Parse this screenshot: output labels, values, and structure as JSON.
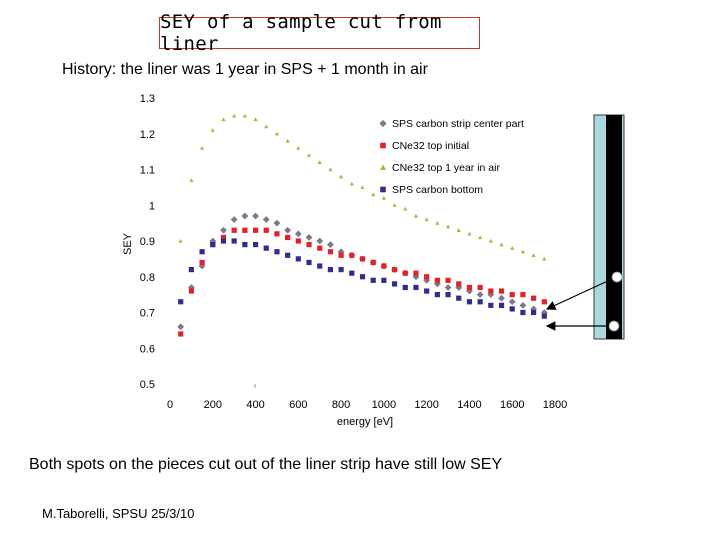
{
  "slide": {
    "title": "SEY of a sample cut from liner",
    "subtitle": "History: the liner was 1 year in SPS +  1 month in air",
    "conclusion": "Both spots on the pieces cut out of the liner strip have still low SEY",
    "footer": "M.Taborelli, SPSU 25/3/10"
  },
  "chart_data": {
    "type": "scatter",
    "title": "",
    "xlabel": "energy [eV]",
    "ylabel": "SEY",
    "xlim": [
      0,
      1800
    ],
    "ylim": [
      0.5,
      1.3
    ],
    "x_ticks": [
      "0",
      "200",
      "400",
      "600",
      "800",
      "1000",
      "1200",
      "1400",
      "1600",
      "1800"
    ],
    "y_ticks": [
      "1.3",
      "1.2",
      "1.1",
      "1",
      "0.9",
      "0.8",
      "0.7",
      "0.6",
      "0.5"
    ],
    "legend_position": "top-right",
    "series": [
      {
        "name": "SPS carbon strip center part",
        "color": "#7a7a8c",
        "marker": "diamond",
        "x": [
          50,
          100,
          150,
          200,
          250,
          300,
          350,
          400,
          450,
          500,
          550,
          600,
          650,
          700,
          750,
          800,
          850,
          900,
          950,
          1000,
          1050,
          1100,
          1150,
          1200,
          1250,
          1300,
          1350,
          1400,
          1450,
          1500,
          1550,
          1600,
          1650,
          1700,
          1750
        ],
        "y": [
          0.66,
          0.77,
          0.83,
          0.9,
          0.93,
          0.96,
          0.97,
          0.97,
          0.96,
          0.95,
          0.93,
          0.92,
          0.91,
          0.9,
          0.89,
          0.87,
          0.86,
          0.85,
          0.84,
          0.83,
          0.82,
          0.81,
          0.8,
          0.79,
          0.78,
          0.77,
          0.77,
          0.76,
          0.75,
          0.75,
          0.74,
          0.73,
          0.72,
          0.71,
          0.7
        ]
      },
      {
        "name": "CNe32 top initial",
        "color": "#e0232a",
        "marker": "square",
        "x": [
          50,
          100,
          150,
          200,
          250,
          300,
          350,
          400,
          450,
          500,
          550,
          600,
          650,
          700,
          750,
          800,
          850,
          900,
          950,
          1000,
          1050,
          1100,
          1150,
          1200,
          1250,
          1300,
          1350,
          1400,
          1450,
          1500,
          1550,
          1600,
          1650,
          1700,
          1750
        ],
        "y": [
          0.64,
          0.76,
          0.84,
          0.89,
          0.91,
          0.93,
          0.93,
          0.93,
          0.93,
          0.92,
          0.91,
          0.9,
          0.89,
          0.88,
          0.87,
          0.86,
          0.86,
          0.85,
          0.84,
          0.83,
          0.82,
          0.81,
          0.81,
          0.8,
          0.79,
          0.79,
          0.78,
          0.77,
          0.77,
          0.76,
          0.76,
          0.75,
          0.75,
          0.74,
          0.73
        ]
      },
      {
        "name": "CNe32 top 1 year in air",
        "color": "#8fc33a",
        "marker": "triangle",
        "x": [
          50,
          100,
          150,
          200,
          250,
          300,
          350,
          400,
          450,
          500,
          550,
          600,
          650,
          700,
          750,
          800,
          850,
          900,
          950,
          1000,
          1050,
          1100,
          1150,
          1200,
          1250,
          1300,
          1350,
          1400,
          1450,
          1500,
          1550,
          1600,
          1650,
          1700,
          1750
        ],
        "y": [
          0.9,
          1.07,
          1.16,
          1.21,
          1.24,
          1.25,
          1.25,
          1.24,
          1.22,
          1.2,
          1.18,
          1.16,
          1.14,
          1.12,
          1.1,
          1.08,
          1.06,
          1.05,
          1.03,
          1.02,
          1.0,
          0.99,
          0.97,
          0.96,
          0.95,
          0.94,
          0.93,
          0.92,
          0.91,
          0.9,
          0.89,
          0.88,
          0.87,
          0.86,
          0.85
        ]
      },
      {
        "name": "SPS carbon bottom",
        "color": "#2e2f86",
        "marker": "square",
        "x": [
          50,
          100,
          150,
          200,
          250,
          300,
          350,
          400,
          450,
          500,
          550,
          600,
          650,
          700,
          750,
          800,
          850,
          900,
          950,
          1000,
          1050,
          1100,
          1150,
          1200,
          1250,
          1300,
          1350,
          1400,
          1450,
          1500,
          1550,
          1600,
          1650,
          1700,
          1750
        ],
        "y": [
          0.73,
          0.82,
          0.87,
          0.89,
          0.9,
          0.9,
          0.89,
          0.89,
          0.88,
          0.87,
          0.86,
          0.85,
          0.84,
          0.83,
          0.82,
          0.82,
          0.81,
          0.8,
          0.79,
          0.79,
          0.78,
          0.77,
          0.77,
          0.76,
          0.75,
          0.75,
          0.74,
          0.73,
          0.73,
          0.72,
          0.72,
          0.71,
          0.7,
          0.7,
          0.69
        ]
      }
    ]
  }
}
